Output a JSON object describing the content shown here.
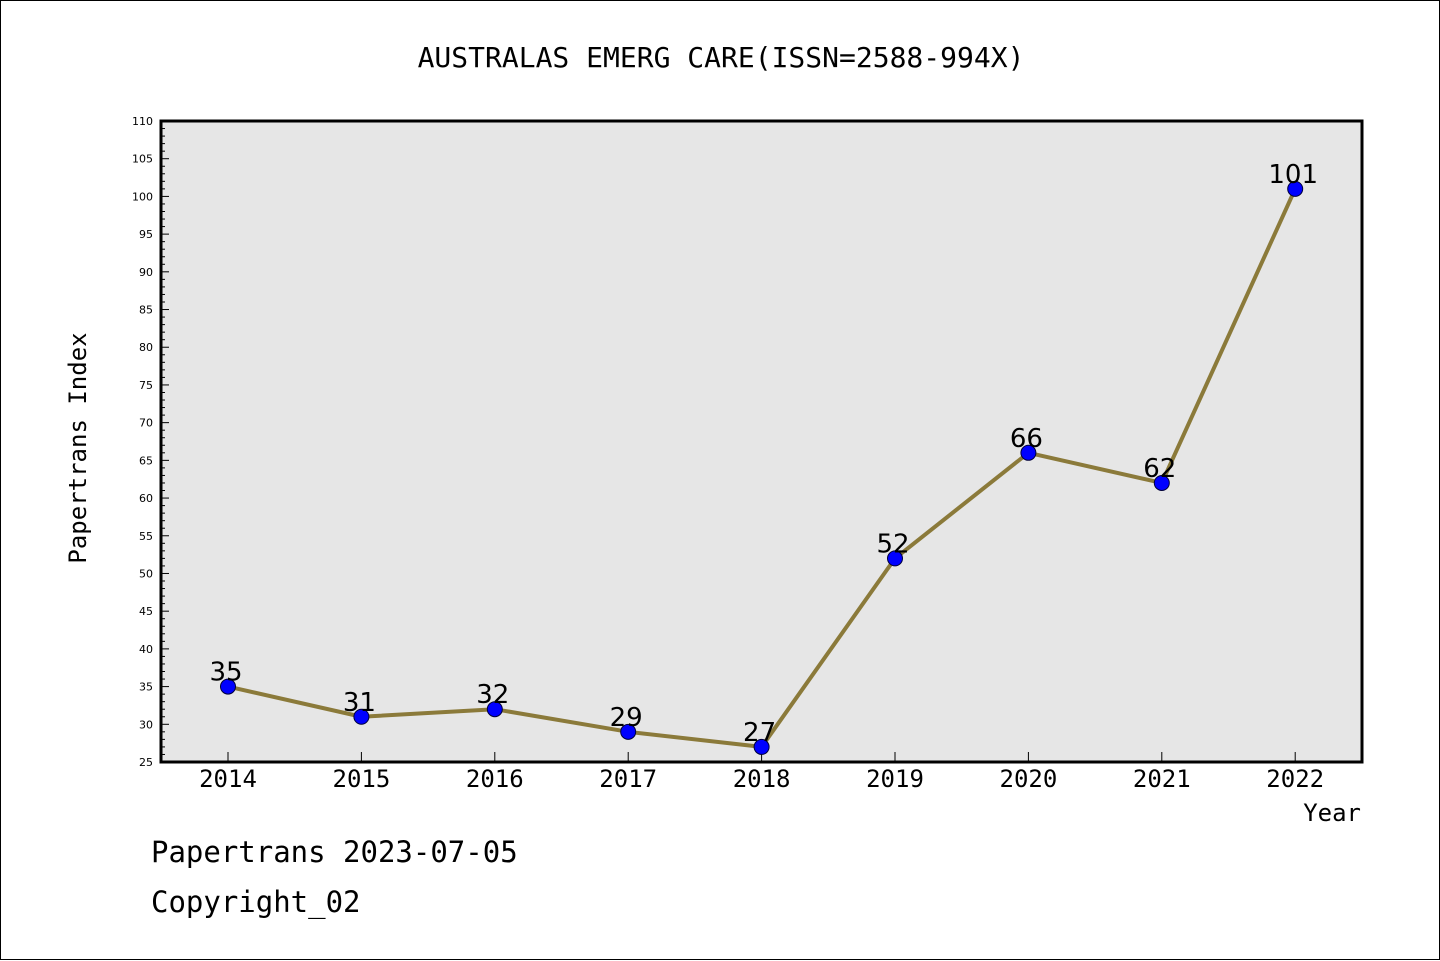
{
  "chart_data": {
    "type": "line",
    "title": "AUSTRALAS EMERG CARE(ISSN=2588-994X)",
    "xlabel": "Year",
    "ylabel": "Papertrans Index",
    "categories": [
      "2014",
      "2015",
      "2016",
      "2017",
      "2018",
      "2019",
      "2020",
      "2021",
      "2022"
    ],
    "series": [
      {
        "values": [
          35,
          31,
          32,
          29,
          27,
          52,
          66,
          62,
          101
        ]
      }
    ],
    "data_labels": [
      "35",
      "31",
      "32",
      "29",
      "27",
      "52",
      "66",
      "62",
      "101"
    ],
    "ylim": [
      25,
      110
    ],
    "yticks": [
      "25",
      "30",
      "35",
      "40",
      "45",
      "50",
      "55",
      "60",
      "65",
      "70",
      "75",
      "80",
      "85",
      "90",
      "95",
      "100",
      "105",
      "110"
    ],
    "grid": false,
    "legend": "none",
    "colors": {
      "line": "#8b7a3a",
      "marker": "#0000ff",
      "plot_background": "#e6e6e6"
    }
  },
  "footer": {
    "line1": "Papertrans 2023-07-05",
    "line2": "Copyright_02"
  }
}
